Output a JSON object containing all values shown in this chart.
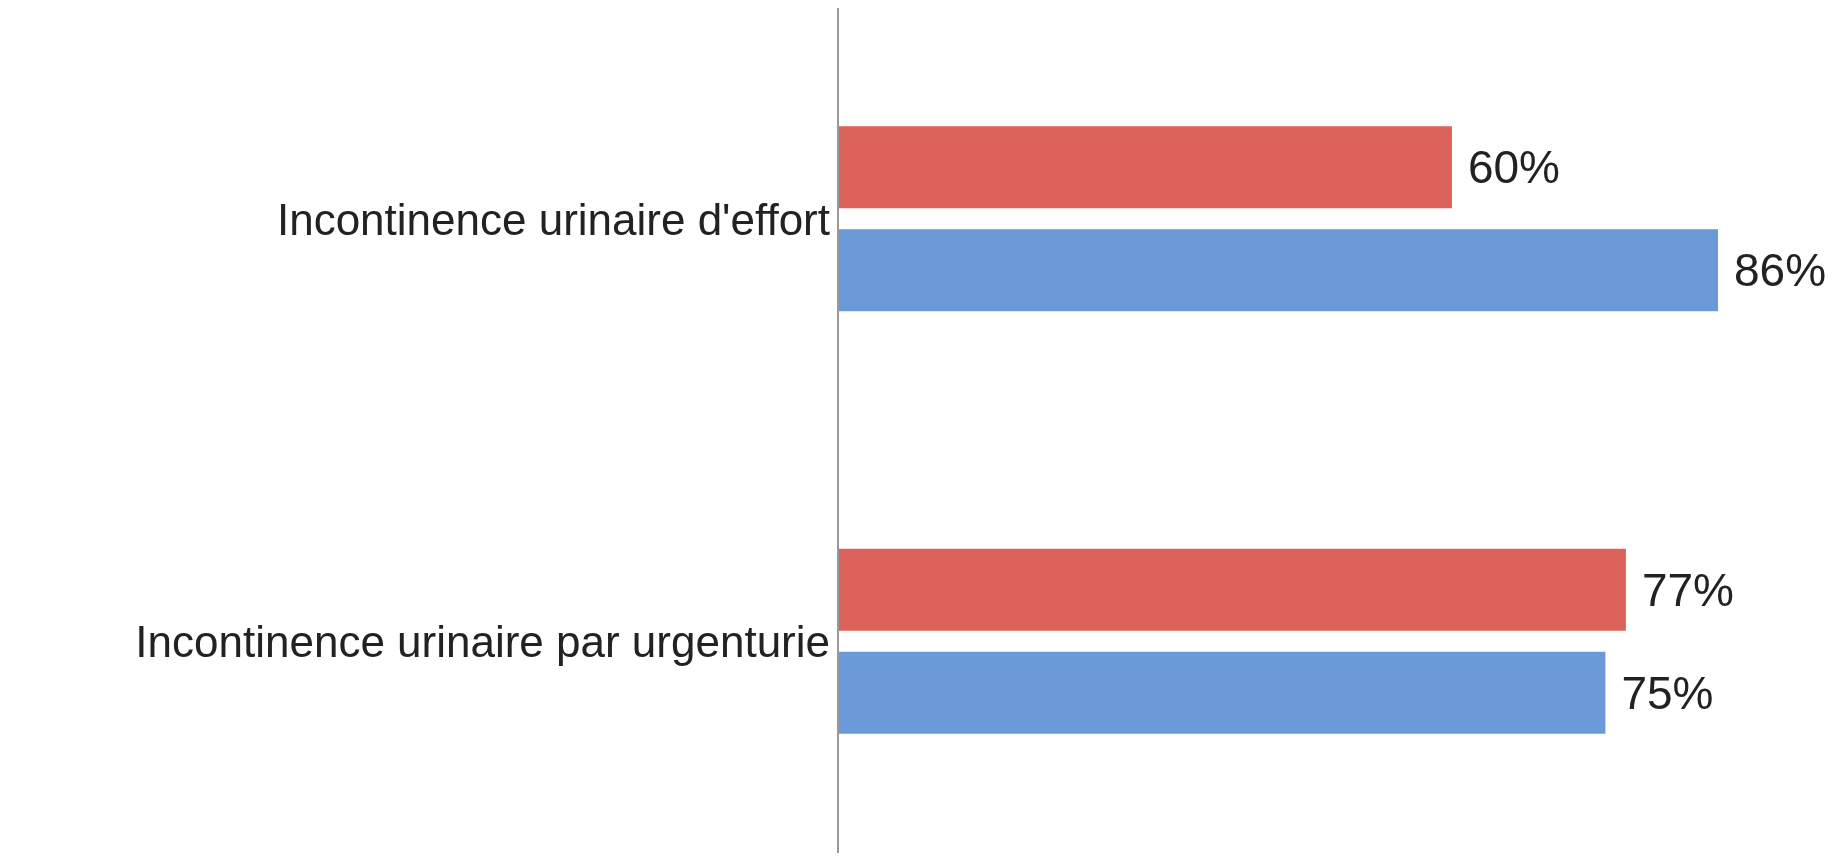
{
  "chart_data": {
    "type": "bar",
    "orientation": "horizontal",
    "categories": [
      "Incontinence urinaire d'effort",
      "Incontinence urinaire par urgenturie"
    ],
    "series": [
      {
        "color": "#dc625c",
        "values": [
          60,
          77
        ],
        "value_labels": [
          "60%",
          "77%"
        ]
      },
      {
        "color": "#6a9bd8",
        "values": [
          86,
          75
        ],
        "value_labels": [
          "86%",
          "75%"
        ]
      }
    ],
    "grid": false,
    "legend": false
  }
}
